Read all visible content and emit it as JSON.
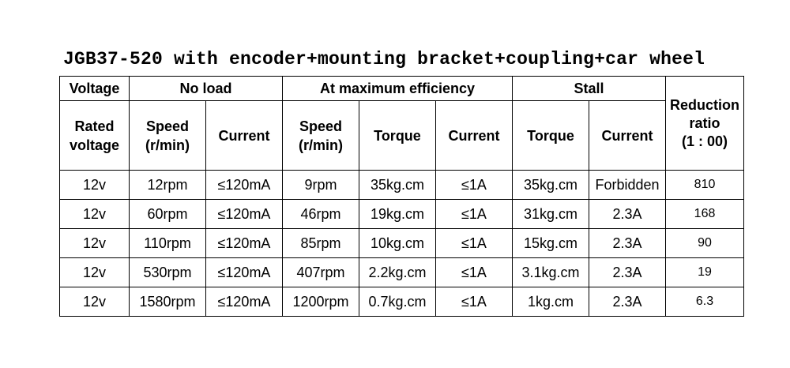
{
  "title": "JGB37-520 with encoder+mounting bracket+coupling+car wheel",
  "header": {
    "voltage": "Voltage",
    "no_load": "No load",
    "max_eff": "At maximum efficiency",
    "stall": "Stall",
    "ratio_line1": "Reduction",
    "ratio_line2": "ratio",
    "ratio_line3": "(1 : 00)",
    "rated_line1": "Rated",
    "rated_line2": "voltage",
    "nl_speed_line1": "Speed",
    "nl_speed_line2": "(r/min)",
    "nl_current": "Current",
    "me_speed_line1": "Speed",
    "me_speed_line2": "(r/min)",
    "me_torque": "Torque",
    "me_current": "Current",
    "st_torque": "Torque",
    "st_current": "Current"
  },
  "rows": [
    [
      "12v",
      "12rpm",
      "≤120mA",
      "9rpm",
      "35kg.cm",
      "≤1A",
      "35kg.cm",
      "Forbidden",
      "810"
    ],
    [
      "12v",
      "60rpm",
      "≤120mA",
      "46rpm",
      "19kg.cm",
      "≤1A",
      "31kg.cm",
      "2.3A",
      "168"
    ],
    [
      "12v",
      "110rpm",
      "≤120mA",
      "85rpm",
      "10kg.cm",
      "≤1A",
      "15kg.cm",
      "2.3A",
      "90"
    ],
    [
      "12v",
      "530rpm",
      "≤120mA",
      "407rpm",
      "2.2kg.cm",
      "≤1A",
      "3.1kg.cm",
      "2.3A",
      "19"
    ],
    [
      "12v",
      "1580rpm",
      "≤120mA",
      "1200rpm",
      "0.7kg.cm",
      "≤1A",
      "1kg.cm",
      "2.3A",
      "6.3"
    ]
  ]
}
